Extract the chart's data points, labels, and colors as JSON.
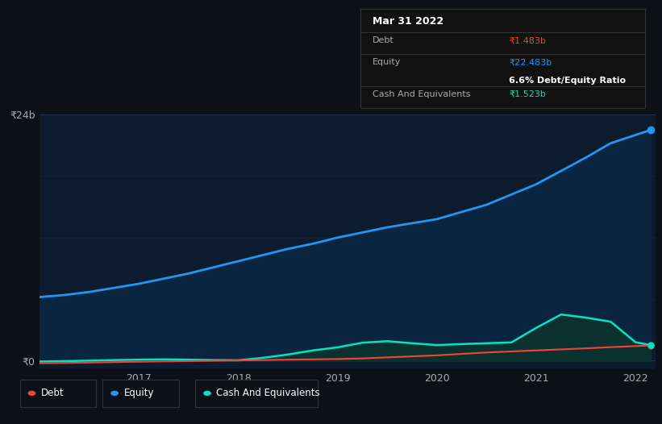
{
  "background_color": "#0d1117",
  "plot_bg_color": "#0d1b2e",
  "title": "Mar 31 2022",
  "tooltip": {
    "debt_label": "Debt",
    "debt_value": "₹1.483b",
    "equity_label": "Equity",
    "equity_value": "₹22.483b",
    "ratio_label": "6.6% Debt/Equity Ratio",
    "cash_label": "Cash And Equivalents",
    "cash_value": "₹1.523b"
  },
  "ylabel_top": "₹24b",
  "ylabel_zero": "₹0",
  "x_ticks": [
    "2017",
    "2018",
    "2019",
    "2020",
    "2021",
    "2022"
  ],
  "equity_color": "#2196f3",
  "debt_color": "#f44336",
  "cash_color": "#00e5c3",
  "equity_fill": "#0a2540",
  "cash_fill": "#0a3030",
  "legend_labels": [
    "Debt",
    "Equity",
    "Cash And Equivalents"
  ],
  "years": [
    2016.0,
    2016.25,
    2016.5,
    2016.75,
    2017.0,
    2017.25,
    2017.5,
    2017.75,
    2018.0,
    2018.25,
    2018.5,
    2018.75,
    2019.0,
    2019.25,
    2019.5,
    2019.75,
    2020.0,
    2020.25,
    2020.5,
    2020.75,
    2021.0,
    2021.25,
    2021.5,
    2021.75,
    2022.0,
    2022.15
  ],
  "equity": [
    6.2,
    6.4,
    6.7,
    7.1,
    7.5,
    8.0,
    8.5,
    9.1,
    9.7,
    10.3,
    10.9,
    11.4,
    12.0,
    12.5,
    13.0,
    13.4,
    13.8,
    14.5,
    15.2,
    16.2,
    17.2,
    18.5,
    19.8,
    21.2,
    22.0,
    22.483
  ],
  "debt": [
    -0.25,
    -0.22,
    -0.18,
    -0.14,
    -0.1,
    -0.07,
    -0.04,
    -0.01,
    0.02,
    0.06,
    0.1,
    0.13,
    0.16,
    0.22,
    0.32,
    0.42,
    0.52,
    0.66,
    0.8,
    0.9,
    1.0,
    1.1,
    1.2,
    1.32,
    1.42,
    1.483
  ],
  "cash": [
    -0.08,
    -0.04,
    0.0,
    0.06,
    0.1,
    0.13,
    0.1,
    0.06,
    0.04,
    0.28,
    0.6,
    1.0,
    1.3,
    1.75,
    1.9,
    1.7,
    1.52,
    1.62,
    1.7,
    1.78,
    3.2,
    4.5,
    4.2,
    3.8,
    1.8,
    1.523
  ],
  "ymax": 24,
  "ymin": -0.8,
  "xmin": 2016.0,
  "xmax": 2022.2
}
